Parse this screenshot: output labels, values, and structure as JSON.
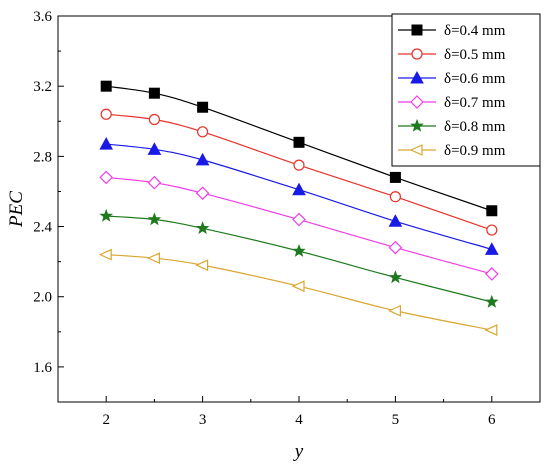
{
  "chart_data": {
    "type": "line",
    "xlabel": "y",
    "ylabel": "PEC",
    "xlim": [
      1.5,
      6.5
    ],
    "ylim": [
      1.4,
      3.6
    ],
    "x_ticks": [
      2,
      3,
      4,
      5,
      6
    ],
    "x_tick_labels": [
      "2",
      "3",
      "4",
      "5",
      "6"
    ],
    "y_ticks": [
      1.6,
      2.0,
      2.4,
      2.8,
      3.2,
      3.6
    ],
    "y_tick_labels": [
      "1.6",
      "2.0",
      "2.4",
      "2.8",
      "3.2",
      "3.6"
    ],
    "grid": false,
    "legend_position": "top-right",
    "x": [
      2,
      2.5,
      3,
      4,
      5,
      6
    ],
    "series": [
      {
        "name": "δ=0.4 mm",
        "color": "#000000",
        "marker": "square-filled",
        "values": [
          3.2,
          3.16,
          3.08,
          2.88,
          2.68,
          2.49
        ]
      },
      {
        "name": "δ=0.5 mm",
        "color": "#e8312a",
        "marker": "circle-open",
        "values": [
          3.04,
          3.01,
          2.94,
          2.75,
          2.57,
          2.38
        ]
      },
      {
        "name": "δ=0.6 mm",
        "color": "#1a1ae6",
        "marker": "triangle-filled",
        "values": [
          2.87,
          2.84,
          2.78,
          2.61,
          2.43,
          2.27
        ]
      },
      {
        "name": "δ=0.7 mm",
        "color": "#ee3fe6",
        "marker": "diamond-open",
        "values": [
          2.68,
          2.65,
          2.59,
          2.44,
          2.28,
          2.13
        ]
      },
      {
        "name": "δ=0.8 mm",
        "color": "#1e7a1e",
        "marker": "star-filled",
        "values": [
          2.46,
          2.44,
          2.39,
          2.26,
          2.11,
          1.97
        ]
      },
      {
        "name": "δ=0.9 mm",
        "color": "#d9a630",
        "marker": "triangle-left-open",
        "values": [
          2.24,
          2.22,
          2.18,
          2.06,
          1.92,
          1.81
        ]
      }
    ]
  }
}
